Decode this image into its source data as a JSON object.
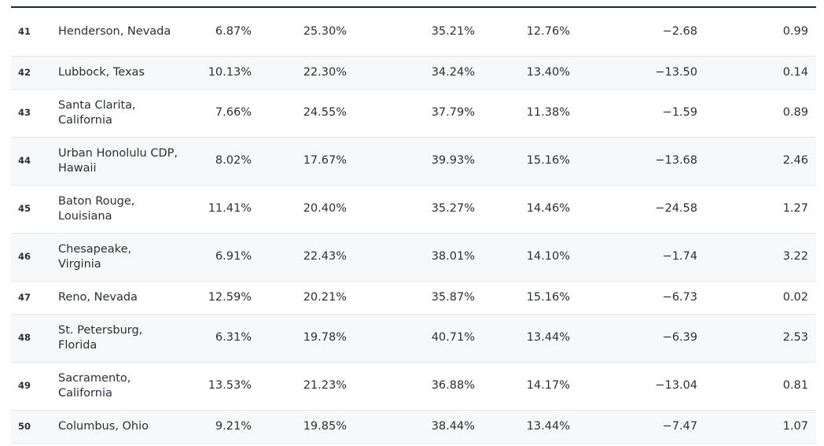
{
  "table": {
    "rows": [
      {
        "rank": "41",
        "city": "Henderson, Nevada",
        "v1": "6.87%",
        "v2": "25.30%",
        "v3": "35.21%",
        "v4": "12.76%",
        "v5": "−2.68",
        "v6": "0.99"
      },
      {
        "rank": "42",
        "city": "Lubbock, Texas",
        "v1": "10.13%",
        "v2": "22.30%",
        "v3": "34.24%",
        "v4": "13.40%",
        "v5": "−13.50",
        "v6": "0.14"
      },
      {
        "rank": "43",
        "city": "Santa Clarita, California",
        "v1": "7.66%",
        "v2": "24.55%",
        "v3": "37.79%",
        "v4": "11.38%",
        "v5": "−1.59",
        "v6": "0.89"
      },
      {
        "rank": "44",
        "city": "Urban Honolulu CDP, Hawaii",
        "v1": "8.02%",
        "v2": "17.67%",
        "v3": "39.93%",
        "v4": "15.16%",
        "v5": "−13.68",
        "v6": "2.46"
      },
      {
        "rank": "45",
        "city": "Baton Rouge, Louisiana",
        "v1": "11.41%",
        "v2": "20.40%",
        "v3": "35.27%",
        "v4": "14.46%",
        "v5": "−24.58",
        "v6": "1.27"
      },
      {
        "rank": "46",
        "city": "Chesapeake, Virginia",
        "v1": "6.91%",
        "v2": "22.43%",
        "v3": "38.01%",
        "v4": "14.10%",
        "v5": "−1.74",
        "v6": "3.22"
      },
      {
        "rank": "47",
        "city": "Reno, Nevada",
        "v1": "12.59%",
        "v2": "20.21%",
        "v3": "35.87%",
        "v4": "15.16%",
        "v5": "−6.73",
        "v6": "0.02"
      },
      {
        "rank": "48",
        "city": "St. Petersburg, Florida",
        "v1": "6.31%",
        "v2": "19.78%",
        "v3": "40.71%",
        "v4": "13.44%",
        "v5": "−6.39",
        "v6": "2.53"
      },
      {
        "rank": "49",
        "city": "Sacramento, California",
        "v1": "13.53%",
        "v2": "21.23%",
        "v3": "36.88%",
        "v4": "14.17%",
        "v5": "−13.04",
        "v6": "0.81"
      },
      {
        "rank": "50",
        "city": "Columbus, Ohio",
        "v1": "9.21%",
        "v2": "19.85%",
        "v3": "38.44%",
        "v4": "13.44%",
        "v5": "−7.47",
        "v6": "1.07"
      }
    ]
  }
}
